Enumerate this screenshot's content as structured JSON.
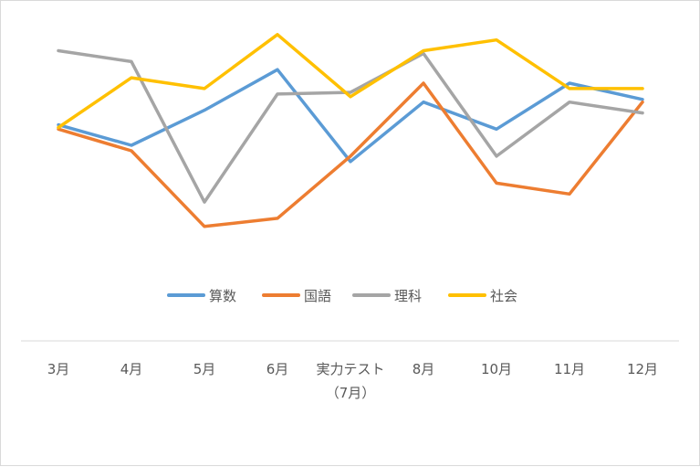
{
  "chart_data": {
    "type": "line",
    "categories": [
      "3月",
      "4月",
      "5月",
      "6月",
      "実力テスト（7月）",
      "8月",
      "10月",
      "11月",
      "12月"
    ],
    "category_labels": [
      [
        "3月"
      ],
      [
        "4月"
      ],
      [
        "5月"
      ],
      [
        "6月"
      ],
      [
        "実力テスト",
        "（7月）"
      ],
      [
        "8月"
      ],
      [
        "10月"
      ],
      [
        "11月"
      ],
      [
        "12月"
      ]
    ],
    "series": [
      {
        "name": "算数",
        "color": "#5b9bd5",
        "values": [
          42.8,
          39.0,
          45.5,
          53.0,
          36.0,
          47.0,
          42.0,
          50.5,
          47.5
        ]
      },
      {
        "name": "国語",
        "color": "#ed7d31",
        "values": [
          42.0,
          38.0,
          24.0,
          25.5,
          37.0,
          50.5,
          32.0,
          30.0,
          47.0
        ]
      },
      {
        "name": "理科",
        "color": "#a5a5a5",
        "values": [
          56.5,
          54.5,
          28.5,
          48.5,
          48.8,
          56.0,
          37.0,
          47.0,
          45.0
        ]
      },
      {
        "name": "社会",
        "color": "#ffc000",
        "values": [
          42.3,
          51.5,
          49.5,
          59.5,
          48.0,
          56.5,
          58.5,
          49.5,
          49.5
        ]
      }
    ],
    "ylim": [
      15,
      62
    ],
    "grid": false,
    "legend_position": "bottom"
  }
}
